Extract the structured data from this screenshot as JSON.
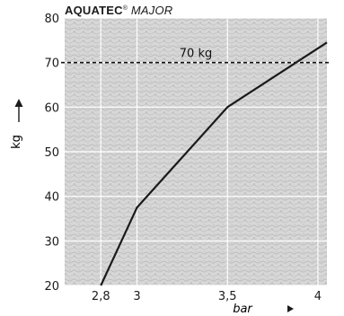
{
  "chart_data": {
    "type": "line",
    "title": {
      "brand": "AQUATEC",
      "reg": "®",
      "model": "MAJOR"
    },
    "xlabel": "bar",
    "ylabel": "kg",
    "xlim": [
      2.6,
      4.05
    ],
    "ylim": [
      20,
      80
    ],
    "x_ticks": [
      {
        "value": 2.8,
        "label": "2,8"
      },
      {
        "value": 3,
        "label": "3"
      },
      {
        "value": 3.5,
        "label": "3,5"
      },
      {
        "value": 4,
        "label": "4"
      }
    ],
    "y_ticks": [
      {
        "value": 20,
        "label": "20"
      },
      {
        "value": 30,
        "label": "30"
      },
      {
        "value": 40,
        "label": "40"
      },
      {
        "value": 50,
        "label": "50"
      },
      {
        "value": 60,
        "label": "60"
      },
      {
        "value": 70,
        "label": "70"
      },
      {
        "value": 80,
        "label": "80"
      }
    ],
    "series": [
      {
        "points": [
          [
            2.8,
            20
          ],
          [
            3.0,
            37.5
          ],
          [
            3.5,
            60
          ],
          [
            4.05,
            74.5
          ]
        ],
        "color": "#1a1a1a"
      }
    ],
    "reference_line": {
      "y": 70,
      "label": "70 kg",
      "style": "dashed"
    },
    "grid": true,
    "background": "textured-grey"
  }
}
